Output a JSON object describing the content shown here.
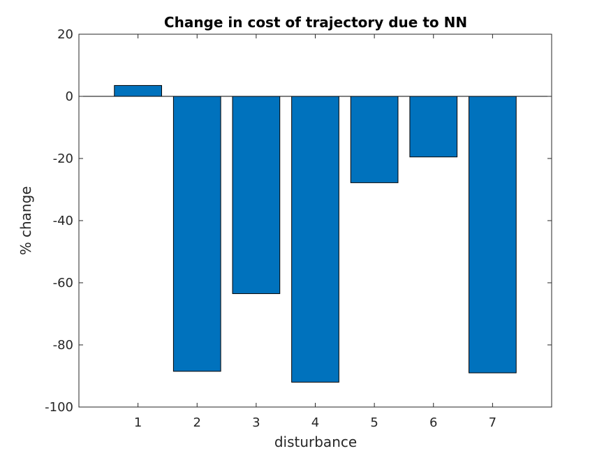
{
  "chart_data": {
    "type": "bar",
    "title": "Change in cost of trajectory due to NN",
    "xlabel": "disturbance",
    "ylabel": "% change",
    "categories": [
      "1",
      "2",
      "3",
      "4",
      "5",
      "6",
      "7"
    ],
    "values": [
      3.5,
      -88.5,
      -63.5,
      -92,
      -27.8,
      -19.5,
      -89
    ],
    "ylim": [
      -100,
      20
    ],
    "xlim": [
      0,
      8
    ],
    "yticks": [
      20,
      0,
      -20,
      -40,
      -60,
      -80,
      -100
    ],
    "ytick_labels": [
      "20",
      "0",
      "-20",
      "-40",
      "-60",
      "-80",
      "-100"
    ],
    "bar_color": "#0072BD",
    "bar_edge_color": "#000000",
    "baseline": 0,
    "grid": false,
    "legend": "none"
  }
}
